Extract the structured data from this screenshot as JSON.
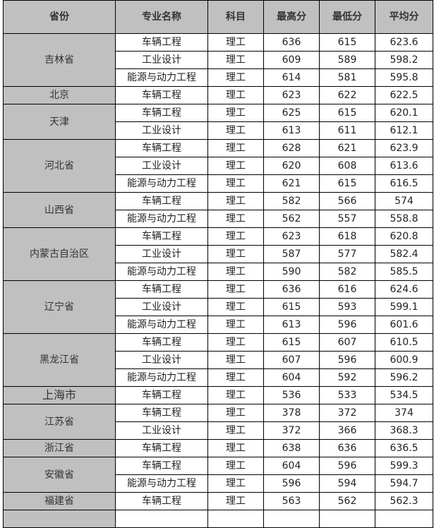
{
  "headers": [
    "省份",
    "专业名称",
    "科目",
    "最高分",
    "最低分",
    "平均分"
  ],
  "provinces": [
    {
      "name": "吉林省",
      "rows": [
        [
          "车辆工程",
          "理工",
          "636",
          "615",
          "623.6"
        ],
        [
          "工业设计",
          "理工",
          "609",
          "589",
          "598.2"
        ],
        [
          "能源与动力工程",
          "理工",
          "614",
          "581",
          "595.8"
        ]
      ]
    },
    {
      "name": "北京",
      "rows": [
        [
          "车辆工程",
          "理工",
          "623",
          "622",
          "622.5"
        ]
      ]
    },
    {
      "name": "天津",
      "rows": [
        [
          "车辆工程",
          "理工",
          "625",
          "615",
          "620.1"
        ],
        [
          "工业设计",
          "理工",
          "613",
          "611",
          "612.1"
        ]
      ]
    },
    {
      "name": "河北省",
      "rows": [
        [
          "车辆工程",
          "理工",
          "628",
          "621",
          "623.9"
        ],
        [
          "工业设计",
          "理工",
          "620",
          "608",
          "613.6"
        ],
        [
          "能源与动力工程",
          "理工",
          "621",
          "615",
          "616.5"
        ]
      ]
    },
    {
      "name": "山西省",
      "rows": [
        [
          "车辆工程",
          "理工",
          "582",
          "566",
          "574"
        ],
        [
          "能源与动力工程",
          "理工",
          "562",
          "557",
          "558.8"
        ]
      ]
    },
    {
      "name": "内蒙古自治区",
      "rows": [
        [
          "车辆工程",
          "理工",
          "623",
          "618",
          "620.8"
        ],
        [
          "工业设计",
          "理工",
          "587",
          "577",
          "582.4"
        ],
        [
          "能源与动力工程",
          "理工",
          "590",
          "582",
          "585.5"
        ]
      ]
    },
    {
      "name": "辽宁省",
      "rows": [
        [
          "车辆工程",
          "理工",
          "636",
          "616",
          "624.6"
        ],
        [
          "工业设计",
          "理工",
          "615",
          "593",
          "599.1"
        ],
        [
          "能源与动力工程",
          "理工",
          "613",
          "596",
          "601.6"
        ]
      ]
    },
    {
      "name": "黑龙江省",
      "rows": [
        [
          "车辆工程",
          "理工",
          "615",
          "607",
          "610.5"
        ],
        [
          "工业设计",
          "理工",
          "607",
          "596",
          "600.9"
        ],
        [
          "能源与动力工程",
          "理工",
          "604",
          "592",
          "596.2"
        ]
      ]
    },
    {
      "name": "上海市",
      "serif": true,
      "rows": [
        [
          "车辆工程",
          "理工",
          "536",
          "533",
          "534.5"
        ]
      ]
    },
    {
      "name": "江苏省",
      "rows": [
        [
          "车辆工程",
          "理工",
          "378",
          "372",
          "374"
        ],
        [
          "工业设计",
          "理工",
          "372",
          "366",
          "368.3"
        ]
      ]
    },
    {
      "name": "浙江省",
      "rows": [
        [
          "车辆工程",
          "理工",
          "638",
          "636",
          "636.5"
        ]
      ]
    },
    {
      "name": "安徽省",
      "rows": [
        [
          "车辆工程",
          "理工",
          "604",
          "596",
          "599.3"
        ],
        [
          "能源与动力工程",
          "理工",
          "596",
          "594",
          "594.7"
        ]
      ]
    },
    {
      "name": "福建省",
      "rows": [
        [
          "车辆工程",
          "理工",
          "563",
          "562",
          "562.3"
        ]
      ]
    }
  ],
  "colors": {
    "province_bg": "#c0c0c0",
    "header_bg": "#c0c0c0"
  }
}
